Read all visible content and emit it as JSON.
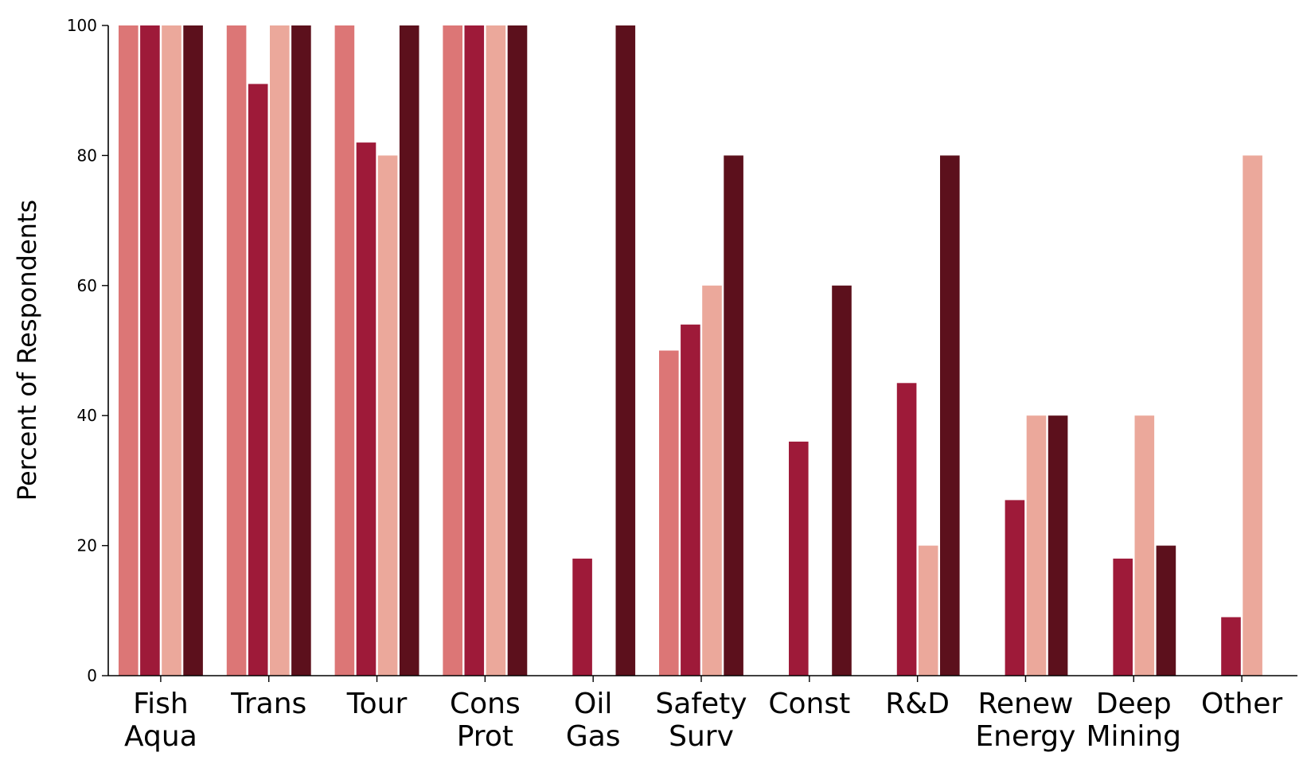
{
  "chart_data": {
    "type": "bar",
    "title": "",
    "xlabel": "",
    "ylabel": "Percent of Respondents",
    "ylim": [
      0,
      100
    ],
    "yticks": [
      "0",
      "20",
      "40",
      "60",
      "80",
      "100"
    ],
    "grid": false,
    "legend": "none",
    "categories": [
      [
        "Fish",
        "Aqua"
      ],
      [
        "Trans"
      ],
      [
        "Tour"
      ],
      [
        "Cons",
        "Prot"
      ],
      [
        "Oil",
        "Gas"
      ],
      [
        "Safety",
        "Surv"
      ],
      [
        "Const"
      ],
      [
        "R&D"
      ],
      [
        "Renew",
        "Energy"
      ],
      [
        "Deep",
        "Mining"
      ],
      [
        "Other"
      ]
    ],
    "series": [
      {
        "color": "#dc7676",
        "values": [
          100,
          100,
          100,
          100,
          0,
          50,
          0,
          0,
          0,
          0,
          0
        ]
      },
      {
        "color": "#9e1a39",
        "values": [
          100,
          91,
          82,
          100,
          18,
          54,
          36,
          45,
          27,
          18,
          9
        ]
      },
      {
        "color": "#eba89b",
        "values": [
          100,
          100,
          80,
          100,
          0,
          60,
          0,
          20,
          40,
          40,
          80
        ]
      },
      {
        "color": "#5c101c",
        "values": [
          100,
          100,
          100,
          100,
          100,
          80,
          60,
          80,
          40,
          20,
          0
        ]
      }
    ]
  }
}
